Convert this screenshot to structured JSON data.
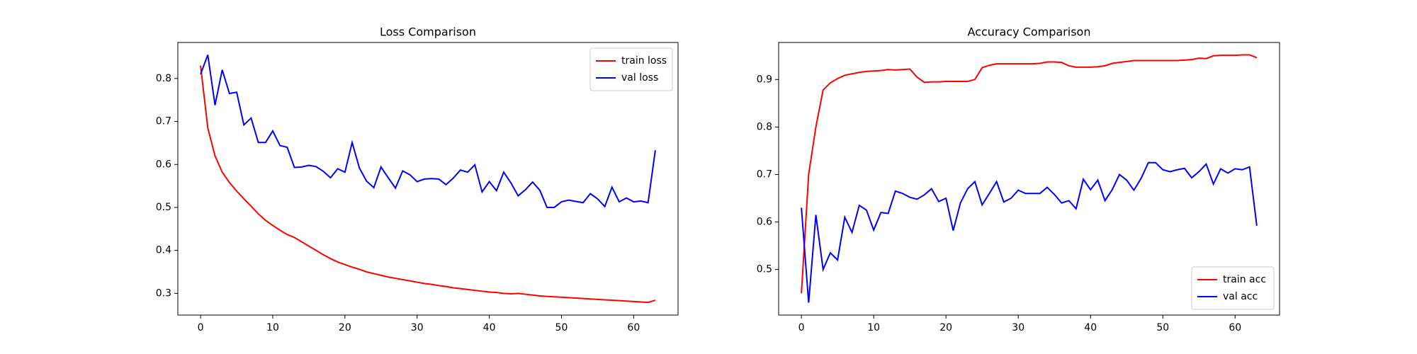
{
  "chart_data": [
    {
      "type": "line",
      "title": "Loss Comparison",
      "x": [
        0,
        1,
        2,
        3,
        4,
        5,
        6,
        7,
        8,
        9,
        10,
        11,
        12,
        13,
        14,
        15,
        16,
        17,
        18,
        19,
        20,
        21,
        22,
        23,
        24,
        25,
        26,
        27,
        28,
        29,
        30,
        31,
        32,
        33,
        34,
        35,
        36,
        37,
        38,
        39,
        40,
        41,
        42,
        43,
        44,
        45,
        46,
        47,
        48,
        49,
        50,
        51,
        52,
        53,
        54,
        55,
        56,
        57,
        58,
        59,
        60,
        61,
        62,
        63
      ],
      "series": [
        {
          "name": "train loss",
          "color": "#ff0000",
          "values": [
            0.83,
            0.685,
            0.62,
            0.582,
            0.558,
            0.538,
            0.52,
            0.503,
            0.485,
            0.47,
            0.458,
            0.447,
            0.437,
            0.43,
            0.42,
            0.41,
            0.4,
            0.39,
            0.381,
            0.373,
            0.367,
            0.361,
            0.356,
            0.35,
            0.346,
            0.342,
            0.338,
            0.335,
            0.332,
            0.329,
            0.326,
            0.323,
            0.321,
            0.318,
            0.316,
            0.313,
            0.311,
            0.309,
            0.307,
            0.305,
            0.303,
            0.302,
            0.3,
            0.299,
            0.3,
            0.298,
            0.296,
            0.294,
            0.293,
            0.292,
            0.291,
            0.29,
            0.289,
            0.288,
            0.287,
            0.286,
            0.285,
            0.284,
            0.283,
            0.282,
            0.281,
            0.28,
            0.279,
            0.284
          ]
        },
        {
          "name": "val loss",
          "color": "#0000ff",
          "values": [
            0.81,
            0.855,
            0.738,
            0.82,
            0.765,
            0.768,
            0.692,
            0.708,
            0.651,
            0.651,
            0.678,
            0.644,
            0.64,
            0.593,
            0.594,
            0.598,
            0.595,
            0.584,
            0.569,
            0.59,
            0.582,
            0.651,
            0.592,
            0.561,
            0.546,
            0.594,
            0.569,
            0.545,
            0.585,
            0.576,
            0.56,
            0.566,
            0.567,
            0.566,
            0.553,
            0.568,
            0.587,
            0.582,
            0.599,
            0.536,
            0.56,
            0.539,
            0.582,
            0.557,
            0.527,
            0.541,
            0.559,
            0.54,
            0.5,
            0.5,
            0.513,
            0.517,
            0.514,
            0.511,
            0.532,
            0.52,
            0.502,
            0.547,
            0.513,
            0.522,
            0.513,
            0.515,
            0.511,
            0.633
          ]
        }
      ],
      "xlim": [
        -3.15,
        66.15
      ],
      "ylim": [
        0.2495,
        0.8838
      ],
      "xticks": [
        0,
        10,
        20,
        30,
        40,
        50,
        60
      ],
      "yticks": [
        0.3,
        0.4,
        0.5,
        0.6,
        0.7,
        0.8
      ],
      "legend": "upper right"
    },
    {
      "type": "line",
      "title": "Accuracy Comparison",
      "x": [
        0,
        1,
        2,
        3,
        4,
        5,
        6,
        7,
        8,
        9,
        10,
        11,
        12,
        13,
        14,
        15,
        16,
        17,
        18,
        19,
        20,
        21,
        22,
        23,
        24,
        25,
        26,
        27,
        28,
        29,
        30,
        31,
        32,
        33,
        34,
        35,
        36,
        37,
        38,
        39,
        40,
        41,
        42,
        43,
        44,
        45,
        46,
        47,
        48,
        49,
        50,
        51,
        52,
        53,
        54,
        55,
        56,
        57,
        58,
        59,
        60,
        61,
        62,
        63
      ],
      "series": [
        {
          "name": "train acc",
          "color": "#ff0000",
          "values": [
            0.45,
            0.7,
            0.8,
            0.878,
            0.893,
            0.902,
            0.909,
            0.912,
            0.915,
            0.917,
            0.918,
            0.919,
            0.921,
            0.92,
            0.921,
            0.922,
            0.905,
            0.894,
            0.895,
            0.895,
            0.896,
            0.896,
            0.896,
            0.896,
            0.9,
            0.925,
            0.93,
            0.933,
            0.933,
            0.933,
            0.933,
            0.933,
            0.933,
            0.934,
            0.937,
            0.937,
            0.936,
            0.929,
            0.926,
            0.926,
            0.926,
            0.927,
            0.929,
            0.934,
            0.936,
            0.938,
            0.94,
            0.94,
            0.94,
            0.94,
            0.94,
            0.94,
            0.94,
            0.941,
            0.942,
            0.945,
            0.944,
            0.95,
            0.951,
            0.951,
            0.951,
            0.952,
            0.952,
            0.946
          ]
        },
        {
          "name": "val acc",
          "color": "#0000ff",
          "values": [
            0.63,
            0.43,
            0.615,
            0.5,
            0.535,
            0.52,
            0.61,
            0.578,
            0.635,
            0.625,
            0.583,
            0.62,
            0.618,
            0.665,
            0.66,
            0.652,
            0.648,
            0.657,
            0.67,
            0.643,
            0.65,
            0.582,
            0.64,
            0.67,
            0.685,
            0.636,
            0.66,
            0.685,
            0.642,
            0.65,
            0.667,
            0.66,
            0.66,
            0.66,
            0.673,
            0.658,
            0.64,
            0.645,
            0.628,
            0.69,
            0.668,
            0.688,
            0.645,
            0.668,
            0.7,
            0.688,
            0.667,
            0.692,
            0.725,
            0.725,
            0.71,
            0.706,
            0.71,
            0.713,
            0.693,
            0.706,
            0.722,
            0.68,
            0.712,
            0.703,
            0.712,
            0.71,
            0.716,
            0.592
          ]
        }
      ],
      "xlim": [
        -3.15,
        66.15
      ],
      "ylim": [
        0.404,
        0.978
      ],
      "xticks": [
        0,
        10,
        20,
        30,
        40,
        50,
        60
      ],
      "yticks": [
        0.5,
        0.6,
        0.7,
        0.8,
        0.9
      ],
      "legend": "lower right"
    }
  ]
}
